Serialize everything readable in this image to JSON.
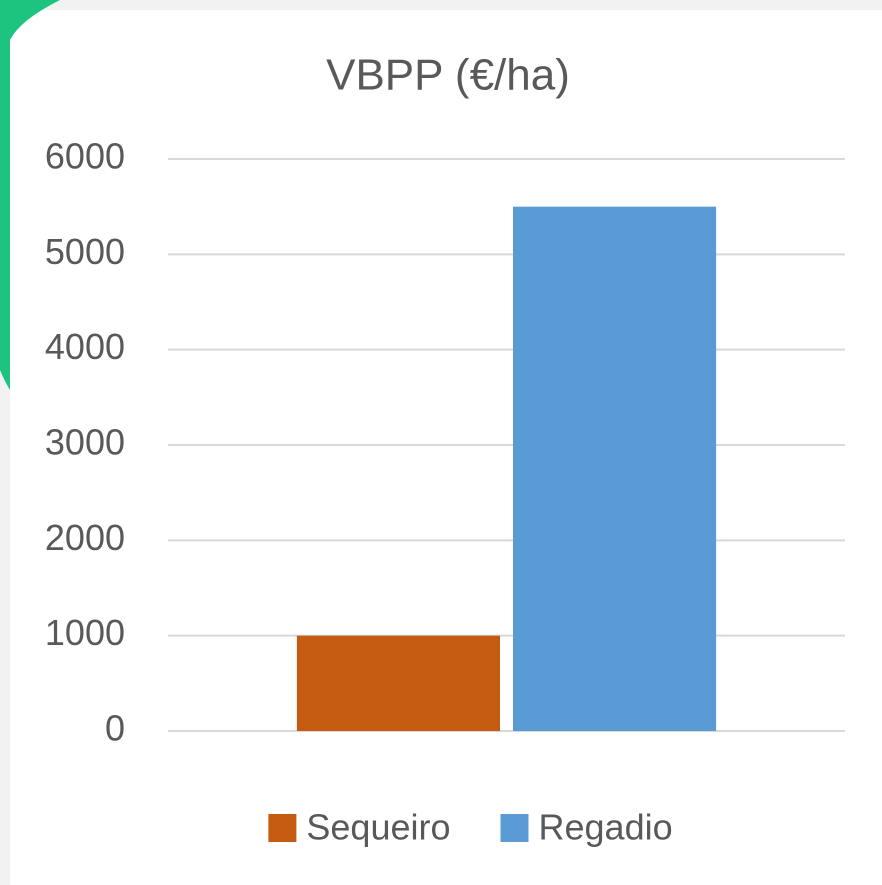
{
  "chart_data": {
    "type": "bar",
    "title": "VBPP (€/ha)",
    "categories": [
      null
    ],
    "series": [
      {
        "name": "Sequeiro",
        "color": "#c55a11",
        "values": [
          1000
        ]
      },
      {
        "name": "Regadio",
        "color": "#5b9bd5",
        "values": [
          5500
        ]
      }
    ],
    "ylim": [
      0,
      6000
    ],
    "yticks": [
      0,
      1000,
      2000,
      3000,
      4000,
      5000,
      6000
    ],
    "grid": true,
    "legend": "bottom"
  }
}
